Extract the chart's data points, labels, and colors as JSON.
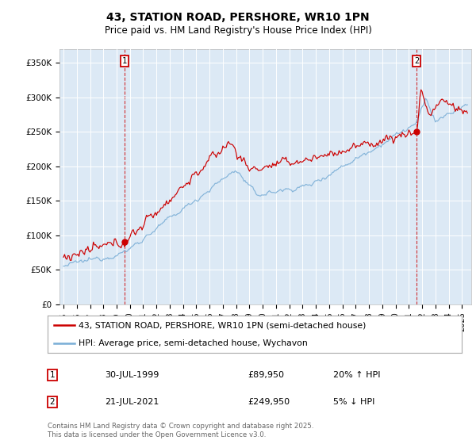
{
  "title": "43, STATION ROAD, PERSHORE, WR10 1PN",
  "subtitle": "Price paid vs. HM Land Registry's House Price Index (HPI)",
  "fig_bg_color": "#ffffff",
  "plot_bg_color": "#dce9f5",
  "hpi_color": "#7aaed6",
  "price_color": "#cc0000",
  "sale1_x": 1999.583,
  "sale1_y": 89950,
  "sale2_x": 2021.583,
  "sale2_y": 249950,
  "ylabel_ticks": [
    "£0",
    "£50K",
    "£100K",
    "£150K",
    "£200K",
    "£250K",
    "£300K",
    "£350K"
  ],
  "ylabel_values": [
    0,
    50000,
    100000,
    150000,
    200000,
    250000,
    300000,
    350000
  ],
  "ylim": [
    0,
    370000
  ],
  "xlim_start": 1994.7,
  "xlim_end": 2025.7,
  "legend_line1": "43, STATION ROAD, PERSHORE, WR10 1PN (semi-detached house)",
  "legend_line2": "HPI: Average price, semi-detached house, Wychavon",
  "footer": "Contains HM Land Registry data © Crown copyright and database right 2025.\nThis data is licensed under the Open Government Licence v3.0.",
  "table_row1": [
    "1",
    "30-JUL-1999",
    "£89,950",
    "20% ↑ HPI"
  ],
  "table_row2": [
    "2",
    "21-JUL-2021",
    "£249,950",
    "5% ↓ HPI"
  ]
}
